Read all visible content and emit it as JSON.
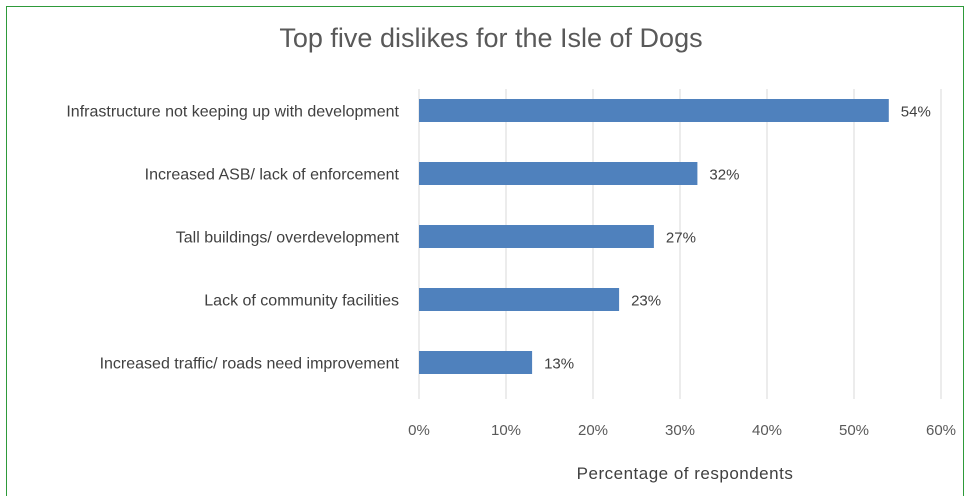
{
  "chart_data": {
    "type": "bar",
    "orientation": "horizontal",
    "title": "Top five dislikes for the Isle of Dogs",
    "xlabel": "Percentage of respondents",
    "ylabel": "",
    "categories": [
      "Infrastructure not keeping up with development",
      "Increased ASB/ lack of enforcement",
      "Tall buildings/ overdevelopment",
      "Lack of community facilities",
      "Increased traffic/ roads need improvement"
    ],
    "values": [
      54,
      32,
      27,
      23,
      13
    ],
    "data_labels": [
      "54%",
      "32%",
      "27%",
      "23%",
      "13%"
    ],
    "xlim": [
      0,
      60
    ],
    "xticks": [
      "0%",
      "10%",
      "20%",
      "30%",
      "40%",
      "50%",
      "60%"
    ],
    "grid": true,
    "legend": "none",
    "bar_color": "#4f81bd",
    "frame_color": "#2e9a3a"
  }
}
